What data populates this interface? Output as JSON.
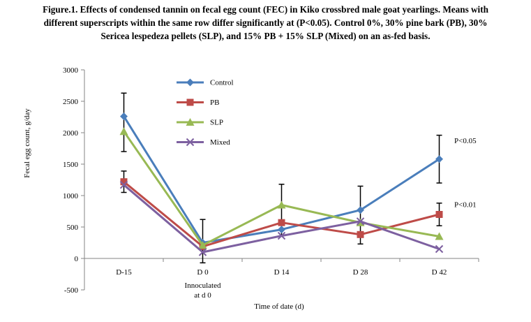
{
  "caption": {
    "line1": "Figure.1. Effects of condensed tannin on fecal egg count (FEC) in Kiko crossbred male goat yearlings. Means with",
    "line2": "different superscripts within the same row differ significantly at (P<0.05). Control 0%, 30% pine bark (PB), 30%",
    "line3": "Sericea lespedeza pellets (SLP), and 15% PB + 15% SLP (Mixed) on an as-fed basis."
  },
  "chart_data": {
    "type": "line",
    "xlabel": "Time of date (d)",
    "ylabel": "Fecal egg count, g/day",
    "categories": [
      "D-15",
      "D 0",
      "D 14",
      "D 28",
      "D 42"
    ],
    "category_sublabels": [
      "",
      "Innoculated at d 0",
      "",
      "",
      ""
    ],
    "yticks": [
      -500,
      0,
      500,
      1000,
      1500,
      2000,
      2500,
      3000
    ],
    "ylim": [
      -500,
      3000
    ],
    "legend_position": "top-center",
    "grid": false,
    "series": [
      {
        "name": "Control",
        "color": "#4a7ebb",
        "marker": "diamond",
        "values": [
          2260,
          250,
          460,
          770,
          1580
        ]
      },
      {
        "name": "PB",
        "color": "#be4b48",
        "marker": "square",
        "values": [
          1220,
          190,
          570,
          380,
          700
        ]
      },
      {
        "name": "SLP",
        "color": "#98b954",
        "marker": "triangle",
        "values": [
          2020,
          210,
          850,
          570,
          350
        ]
      },
      {
        "name": "Mixed",
        "color": "#7d60a0",
        "marker": "x",
        "values": [
          1170,
          100,
          360,
          590,
          150
        ]
      }
    ],
    "error_bars": [
      {
        "index": 0,
        "low": 1700,
        "high": 2630
      },
      {
        "index": 0,
        "low": 1050,
        "high": 1390
      },
      {
        "index": 1,
        "low": -70,
        "high": 620
      },
      {
        "index": 2,
        "low": 360,
        "high": 1180
      },
      {
        "index": 3,
        "low": 230,
        "high": 1150
      },
      {
        "index": 4,
        "low": 1200,
        "high": 1960
      },
      {
        "index": 4,
        "low": 520,
        "high": 880
      }
    ],
    "annotations": [
      {
        "text": "P<0.05",
        "x_index": 4,
        "y": 1880
      },
      {
        "text": "P<0.01",
        "x_index": 4,
        "y": 860
      }
    ]
  }
}
